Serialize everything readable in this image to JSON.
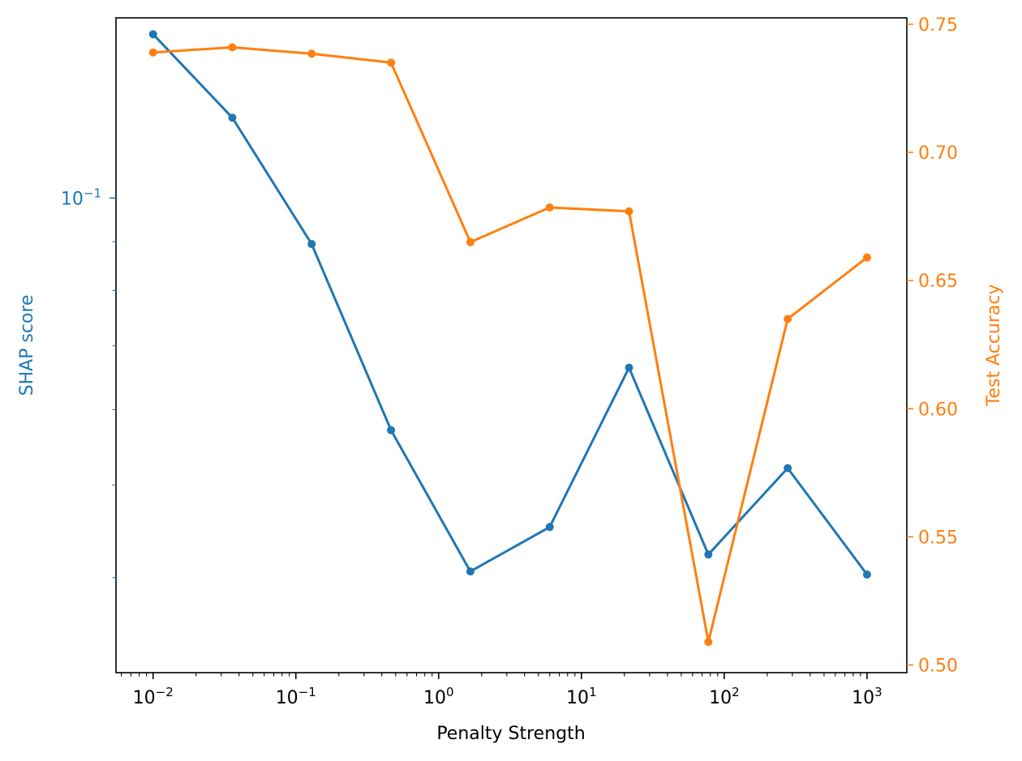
{
  "chart_data": {
    "type": "line",
    "xlabel": "Penalty Strength",
    "xscale": "log",
    "xlim": [
      0.0055,
      1900
    ],
    "x_ticks": [
      {
        "value": 0.01,
        "base": "10",
        "exp": "−2"
      },
      {
        "value": 0.1,
        "base": "10",
        "exp": "−1"
      },
      {
        "value": 1,
        "base": "10",
        "exp": "0"
      },
      {
        "value": 10,
        "base": "10",
        "exp": "1"
      },
      {
        "value": 100,
        "base": "10",
        "exp": "2"
      },
      {
        "value": 1000,
        "base": "10",
        "exp": "3"
      }
    ],
    "x": [
      0.01,
      0.0359,
      0.129,
      0.464,
      1.668,
      5.995,
      21.54,
      77.43,
      278.3,
      1000
    ],
    "y_left": {
      "label": "SHAP score",
      "scale": "log",
      "ylim": [
        0.0318,
        0.1545
      ],
      "color": "#1f77b4",
      "major_ticks": [
        {
          "value": 0.1,
          "base": "10",
          "exp": "−1"
        }
      ],
      "minor_ticks": [
        0.04,
        0.05,
        0.06,
        0.07,
        0.08,
        0.09
      ]
    },
    "y_right": {
      "label": "Test Accuracy",
      "scale": "linear",
      "ylim": [
        0.497,
        0.7525
      ],
      "color": "#ff7f0e",
      "ticks": [
        {
          "value": 0.5,
          "label": "0.50"
        },
        {
          "value": 0.55,
          "label": "0.55"
        },
        {
          "value": 0.6,
          "label": "0.60"
        },
        {
          "value": 0.65,
          "label": "0.65"
        },
        {
          "value": 0.7,
          "label": "0.70"
        },
        {
          "value": 0.75,
          "label": "0.75"
        }
      ]
    },
    "series": [
      {
        "name": "SHAP score",
        "axis": "left",
        "color": "#1f77b4",
        "values": [
          0.1485,
          0.1214,
          0.0895,
          0.0571,
          0.0406,
          0.0452,
          0.0664,
          0.0423,
          0.0521,
          0.0403
        ]
      },
      {
        "name": "Test Accuracy",
        "axis": "right",
        "color": "#ff7f0e",
        "values": [
          0.739,
          0.741,
          0.7385,
          0.735,
          0.665,
          0.6785,
          0.677,
          0.509,
          0.635,
          0.659
        ]
      }
    ]
  }
}
